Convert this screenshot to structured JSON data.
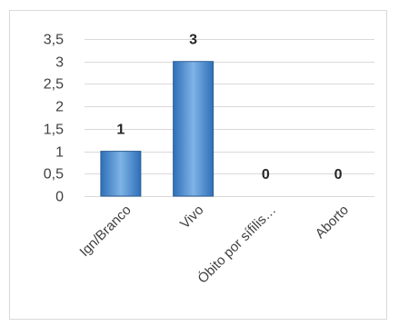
{
  "chart_data": {
    "type": "bar",
    "categories": [
      "Ign/Branco",
      "Vivo",
      "Óbito por sífilis…",
      "Aborto"
    ],
    "values": [
      1,
      3,
      0,
      0
    ],
    "data_labels": [
      "1",
      "3",
      "0",
      "0"
    ],
    "ylim": [
      0,
      3.5
    ],
    "yticks": [
      "0",
      "0,5",
      "1",
      "1,5",
      "2",
      "2,5",
      "3",
      "3,5"
    ],
    "ytick_values": [
      0,
      0.5,
      1,
      1.5,
      2,
      2.5,
      3,
      3.5
    ],
    "grid": true,
    "legend": false,
    "colors": {
      "bar_fill_top": "#7fb3e6",
      "bar_fill_bottom": "#2e6fb8",
      "bar_stroke": "#2f5f95",
      "grid": "#d9d9d9",
      "border": "#d9d9d9"
    }
  }
}
